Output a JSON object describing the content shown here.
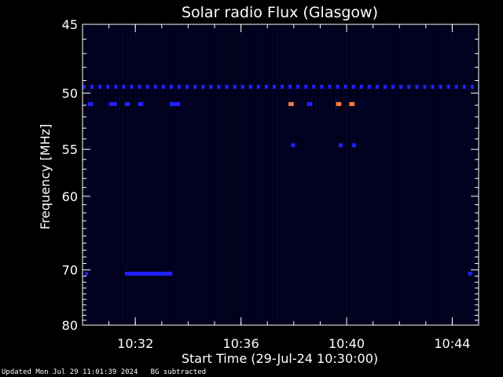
{
  "chart_data": {
    "type": "heatmap",
    "title": "Solar radio Flux (Glasgow)",
    "xlabel": "Start Time (29-Jul-24 10:30:00)",
    "ylabel": "Frequency [MHz]",
    "x_unit": "minutes after 10:30:00",
    "xlim": [
      0,
      15
    ],
    "x_ticks": [
      {
        "value": 2,
        "label": "10:32"
      },
      {
        "value": 6,
        "label": "10:36"
      },
      {
        "value": 10,
        "label": "10:40"
      },
      {
        "value": 14,
        "label": "10:44"
      }
    ],
    "ylim": [
      45,
      80
    ],
    "y_ticks": [
      45,
      50,
      55,
      60,
      70,
      80
    ],
    "y_scale": "reciprocal",
    "background_color": "#00001a",
    "colors": {
      "dark_blue": "#0a0a55",
      "blue": "#2020ff",
      "orange": "#ff7a3d"
    },
    "features": [
      {
        "kind": "tick-row",
        "freq": 49.5,
        "x_start": 0.0,
        "x_end": 15.0,
        "step": 0.3,
        "width": 0.12,
        "intensity": "blue"
      },
      {
        "kind": "dash",
        "freq": 50.9,
        "x_start": 0.2,
        "x_end": 0.4,
        "intensity": "blue"
      },
      {
        "kind": "dash",
        "freq": 50.9,
        "x_start": 1.0,
        "x_end": 1.3,
        "intensity": "blue"
      },
      {
        "kind": "dash",
        "freq": 50.9,
        "x_start": 1.6,
        "x_end": 1.8,
        "intensity": "blue"
      },
      {
        "kind": "dash",
        "freq": 50.9,
        "x_start": 2.1,
        "x_end": 2.3,
        "intensity": "blue"
      },
      {
        "kind": "dash",
        "freq": 50.9,
        "x_start": 3.3,
        "x_end": 3.7,
        "intensity": "blue"
      },
      {
        "kind": "dash",
        "freq": 50.9,
        "x_start": 7.8,
        "x_end": 8.0,
        "intensity": "orange"
      },
      {
        "kind": "dash",
        "freq": 50.9,
        "x_start": 8.5,
        "x_end": 8.7,
        "intensity": "blue"
      },
      {
        "kind": "dash",
        "freq": 50.9,
        "x_start": 9.6,
        "x_end": 9.8,
        "intensity": "orange"
      },
      {
        "kind": "dash",
        "freq": 50.9,
        "x_start": 10.1,
        "x_end": 10.3,
        "intensity": "orange"
      },
      {
        "kind": "dash",
        "freq": 54.6,
        "x_start": 7.9,
        "x_end": 8.05,
        "intensity": "blue"
      },
      {
        "kind": "dash",
        "freq": 54.6,
        "x_start": 9.7,
        "x_end": 9.85,
        "intensity": "blue"
      },
      {
        "kind": "dash",
        "freq": 54.6,
        "x_start": 10.2,
        "x_end": 10.35,
        "intensity": "blue"
      },
      {
        "kind": "dash",
        "freq": 70.6,
        "x_start": 1.6,
        "x_end": 3.4,
        "intensity": "blue"
      },
      {
        "kind": "dash",
        "freq": 70.6,
        "x_start": 0.1,
        "x_end": 0.2,
        "intensity": "blue"
      },
      {
        "kind": "dash",
        "freq": 70.6,
        "x_start": 14.6,
        "x_end": 14.75,
        "intensity": "blue"
      }
    ]
  },
  "footer": {
    "updated": "Updated Mon Jul 29 11:01:39 2024",
    "note": "BG subtracted"
  }
}
